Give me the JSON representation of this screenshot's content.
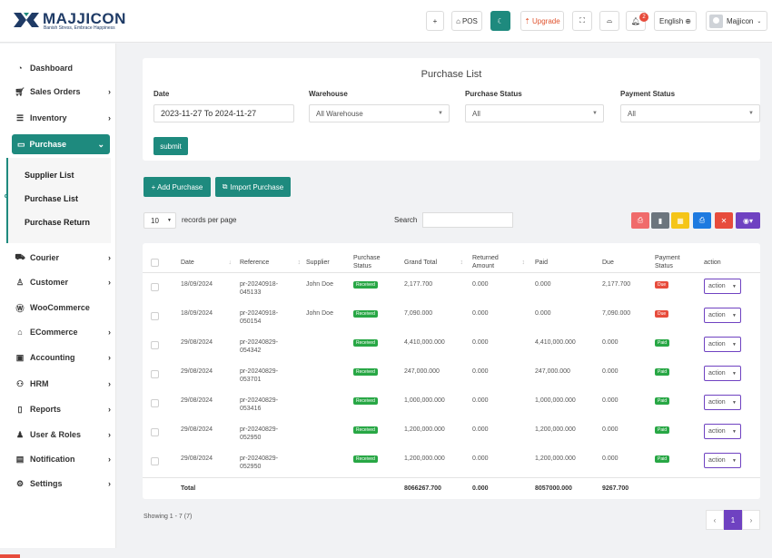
{
  "brand": {
    "name": "MAJJICON",
    "tagline": "Banish Stress, Embrace Happiness"
  },
  "topbar": {
    "plus_icon": "+",
    "pos_label": "POS",
    "upgrade_label": "Upgrade",
    "notification_count": "2",
    "language": "English",
    "user_name": "Majjicon"
  },
  "sidebar": {
    "dashboard": "Dashboard",
    "sales_orders": "Sales Orders",
    "inventory": "Inventory",
    "purchase": "Purchase",
    "purchase_sub": [
      "Supplier List",
      "Purchase List",
      "Purchase Return"
    ],
    "courier": "Courier",
    "customer": "Customer",
    "woocommerce": "WooCommerce",
    "ecommerce": "ECommerce",
    "accounting": "Accounting",
    "hrm": "HRM",
    "reports": "Reports",
    "user_roles": "User & Roles",
    "notification": "Notification",
    "settings": "Settings"
  },
  "filters": {
    "title": "Purchase List",
    "date_label": "Date",
    "date_value": "2023-11-27 To 2024-11-27",
    "warehouse_label": "Warehouse",
    "warehouse_value": "All Warehouse",
    "purchase_status_label": "Purchase Status",
    "purchase_status_value": "All",
    "payment_status_label": "Payment Status",
    "payment_status_value": "All",
    "submit_label": "submit"
  },
  "actions": {
    "add_label": "+ Add Purchase",
    "import_label": "Import Purchase"
  },
  "table_controls": {
    "page_length": "10",
    "records_text": "records per page",
    "search_label": "Search"
  },
  "table": {
    "headers": {
      "date": "Date",
      "reference": "Reference",
      "supplier": "Supplier",
      "purchase_status": "Purchase Status",
      "grand_total": "Grand Total",
      "returned_amount": "Returned Amount",
      "paid": "Paid",
      "due": "Due",
      "payment_status": "Payment Status",
      "action": "action"
    },
    "rows": [
      {
        "date": "18/09/2024",
        "reference": "pr-20240918-045133",
        "supplier": "John Doe",
        "status": "Received",
        "grand_total": "2,177.700",
        "returned": "0.000",
        "paid": "0.000",
        "due": "2,177.700",
        "payment_status": "Due",
        "action": "action"
      },
      {
        "date": "18/09/2024",
        "reference": "pr-20240918-050154",
        "supplier": "John Doe",
        "status": "Received",
        "grand_total": "7,090.000",
        "returned": "0.000",
        "paid": "0.000",
        "due": "7,090.000",
        "payment_status": "Due",
        "action": "action"
      },
      {
        "date": "29/08/2024",
        "reference": "pr-20240829-054342",
        "supplier": "",
        "status": "Received",
        "grand_total": "4,410,000.000",
        "returned": "0.000",
        "paid": "4,410,000.000",
        "due": "0.000",
        "payment_status": "Paid",
        "action": "action"
      },
      {
        "date": "29/08/2024",
        "reference": "pr-20240829-053701",
        "supplier": "",
        "status": "Received",
        "grand_total": "247,000.000",
        "returned": "0.000",
        "paid": "247,000.000",
        "due": "0.000",
        "payment_status": "Paid",
        "action": "action"
      },
      {
        "date": "29/08/2024",
        "reference": "pr-20240829-053416",
        "supplier": "",
        "status": "Received",
        "grand_total": "1,000,000.000",
        "returned": "0.000",
        "paid": "1,000,000.000",
        "due": "0.000",
        "payment_status": "Paid",
        "action": "action"
      },
      {
        "date": "29/08/2024",
        "reference": "pr-20240829-052950",
        "supplier": "",
        "status": "Received",
        "grand_total": "1,200,000.000",
        "returned": "0.000",
        "paid": "1,200,000.000",
        "due": "0.000",
        "payment_status": "Paid",
        "action": "action"
      },
      {
        "date": "29/08/2024",
        "reference": "pr-20240829-052950",
        "supplier": "",
        "status": "Received",
        "grand_total": "1,200,000.000",
        "returned": "0.000",
        "paid": "1,200,000.000",
        "due": "0.000",
        "payment_status": "Paid",
        "action": "action"
      }
    ],
    "footer": {
      "label": "Total",
      "grand_total": "8066267.700",
      "returned": "0.000",
      "paid": "8057000.000",
      "due": "9267.700"
    }
  },
  "pagination": {
    "showing": "Showing 1 - 7 (7)",
    "prev": "‹",
    "current": "1",
    "next": "›"
  },
  "colors": {
    "primary": "#1e8a7e",
    "purple": "#6f42c1",
    "due": "#e74c3c",
    "paid": "#28a745"
  }
}
